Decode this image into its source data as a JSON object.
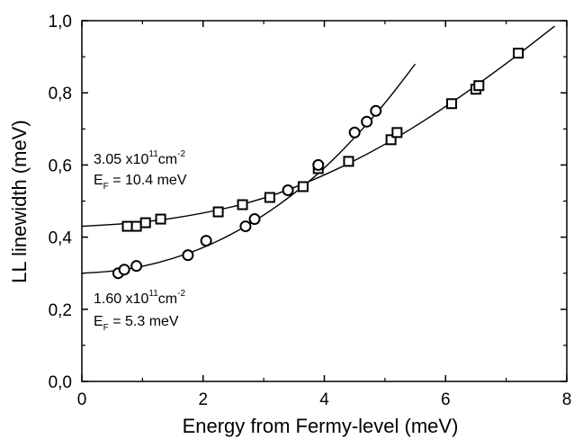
{
  "chart_data": {
    "type": "scatter",
    "title": "",
    "xlabel": "Energy from Fermy-level (meV)",
    "ylabel": "LL linewidth (meV)",
    "xlim": [
      0,
      8
    ],
    "ylim": [
      0,
      1.0
    ],
    "x_ticks": [
      "0",
      "2",
      "4",
      "6",
      "8"
    ],
    "y_ticks": [
      "0,0",
      "0,2",
      "0,4",
      "0,6",
      "0,8",
      "1,0"
    ],
    "grid": false,
    "legend": "none",
    "series": [
      {
        "marker": "square",
        "x": [
          0.75,
          0.9,
          1.05,
          1.3,
          2.25,
          2.65,
          3.1,
          3.65,
          3.9,
          4.4,
          5.1,
          5.2,
          6.1,
          6.5,
          6.55,
          7.2
        ],
        "y": [
          0.43,
          0.43,
          0.44,
          0.45,
          0.47,
          0.49,
          0.51,
          0.54,
          0.59,
          0.61,
          0.67,
          0.69,
          0.77,
          0.81,
          0.82,
          0.91
        ],
        "fit": {
          "x": [
            0,
            1,
            2,
            3,
            4,
            5,
            6,
            7,
            7.8
          ],
          "y": [
            0.43,
            0.44,
            0.465,
            0.505,
            0.57,
            0.655,
            0.76,
            0.88,
            0.985
          ]
        }
      },
      {
        "marker": "circle",
        "x": [
          0.6,
          0.7,
          0.9,
          1.75,
          2.05,
          2.7,
          2.85,
          3.4,
          3.9,
          4.5,
          4.7,
          4.85
        ],
        "y": [
          0.3,
          0.31,
          0.32,
          0.35,
          0.39,
          0.43,
          0.45,
          0.53,
          0.6,
          0.69,
          0.72,
          0.75
        ],
        "fit": {
          "x": [
            0,
            0.5,
            1,
            1.5,
            2,
            2.5,
            3,
            3.5,
            4,
            4.5,
            5,
            5.5
          ],
          "y": [
            0.3,
            0.305,
            0.318,
            0.34,
            0.37,
            0.41,
            0.46,
            0.52,
            0.59,
            0.675,
            0.77,
            0.88
          ]
        }
      }
    ],
    "annotations": [
      {
        "main": "3.05 x10",
        "sup": "11",
        "tail": "cm",
        "sup2": "-2"
      },
      {
        "main": "E",
        "sub": "F",
        "tail": " = 10.4 meV"
      },
      {
        "main": "1.60 x10",
        "sup": "11",
        "tail": "cm",
        "sup2": "-2"
      },
      {
        "main": "E",
        "sub": "F",
        "tail": " = 5.3 meV"
      }
    ]
  }
}
